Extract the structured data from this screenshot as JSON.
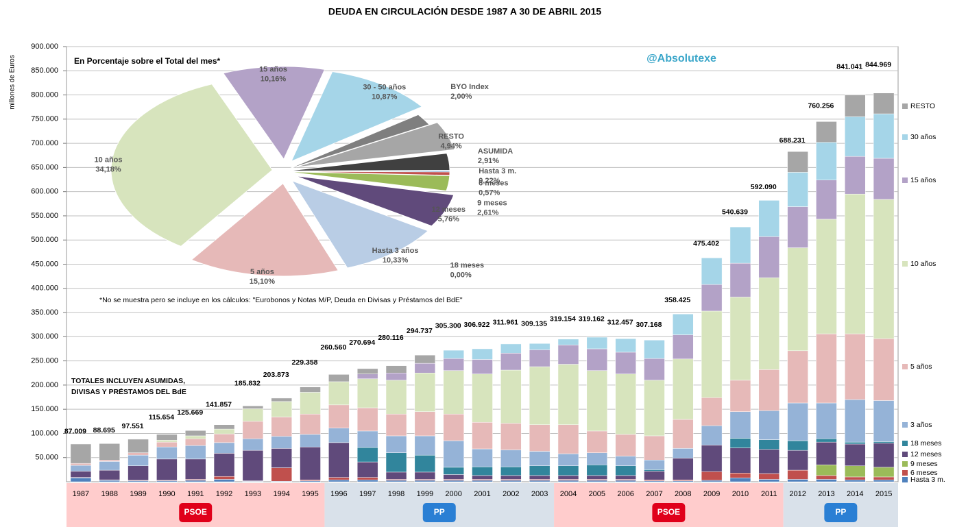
{
  "chart_data": [
    {
      "type": "bar",
      "stacked": true,
      "title": "DEUDA EN CIRCULACIÓN DESDE 1987 A 30 DE ABRIL 2015",
      "y_label": "millones de Euros",
      "watermark": "@Absolutexe",
      "annotations": [
        "TOTALES INCLUYEN ASUMIDAS,",
        "DIVISAS Y PRÉSTAMOS  DEL  BdE"
      ],
      "periods": [
        "PSOE",
        "PP",
        "PSOE",
        "PP"
      ],
      "categories": [
        "1987",
        "1988",
        "1989",
        "1990",
        "1991",
        "1992",
        "1993",
        "1994",
        "1995",
        "1996",
        "1997",
        "1998",
        "1999",
        "2000",
        "2001",
        "2002",
        "2003",
        "2004",
        "2005",
        "2006",
        "2007",
        "2008",
        "2009",
        "2010",
        "2011",
        "2012",
        "2013",
        "2014",
        "2015"
      ],
      "ylim": [
        0,
        900000
      ],
      "yticks": [
        {
          "value": 50000,
          "label": "50.000"
        },
        {
          "value": 100000,
          "label": "100.000"
        },
        {
          "value": 150000,
          "label": "150.000"
        },
        {
          "value": 200000,
          "label": "200.000"
        },
        {
          "value": 250000,
          "label": "250.000"
        },
        {
          "value": 300000,
          "label": "300.000"
        },
        {
          "value": 350000,
          "label": "350.000"
        },
        {
          "value": 400000,
          "label": "400.000"
        },
        {
          "value": 450000,
          "label": "450.000"
        },
        {
          "value": 500000,
          "label": "500.000"
        },
        {
          "value": 550000,
          "label": "550.000"
        },
        {
          "value": 600000,
          "label": "600.000"
        },
        {
          "value": 650000,
          "label": "650.000"
        },
        {
          "value": 700000,
          "label": "700.000"
        },
        {
          "value": 750000,
          "label": "750.000"
        },
        {
          "value": 800000,
          "label": "800.000"
        },
        {
          "value": 850000,
          "label": "850.000"
        },
        {
          "value": 900000,
          "label": "900.000"
        }
      ],
      "grid": true,
      "series": [
        {
          "name": "Hasta 3 m.",
          "color": "#4f81bd",
          "values": [
            8000,
            3000,
            2000,
            2000,
            3000,
            5000,
            1000,
            1000,
            2000,
            4000,
            4000,
            3000,
            3000,
            3000,
            3000,
            3000,
            3000,
            3000,
            3000,
            3000,
            2000,
            2000,
            3000,
            8000,
            5000,
            5000,
            5000,
            4000,
            4000
          ]
        },
        {
          "name": "6 meses",
          "color": "#c0504d",
          "values": [
            1000,
            1000,
            1000,
            1000,
            2000,
            6000,
            1000,
            28000,
            2000,
            5000,
            5000,
            2000,
            2000,
            2000,
            2000,
            2000,
            2000,
            2000,
            2000,
            2000,
            2000,
            2000,
            18000,
            10000,
            12000,
            19000,
            8000,
            6000,
            6000
          ]
        },
        {
          "name": "9 meses",
          "color": "#9bbb59",
          "values": [
            0,
            0,
            0,
            0,
            0,
            0,
            0,
            0,
            0,
            0,
            0,
            0,
            0,
            0,
            0,
            0,
            0,
            0,
            0,
            0,
            0,
            0,
            0,
            0,
            0,
            0,
            22000,
            23000,
            20000
          ]
        },
        {
          "name": "12 meses",
          "color": "#604a7b",
          "values": [
            13000,
            20000,
            30000,
            44000,
            42000,
            48000,
            63000,
            40000,
            68000,
            72000,
            32000,
            15000,
            15000,
            10000,
            8000,
            8000,
            8000,
            8000,
            8000,
            8000,
            18000,
            45000,
            55000,
            52000,
            50000,
            41000,
            47000,
            45000,
            50000
          ]
        },
        {
          "name": "18 meses",
          "color": "#31859c",
          "values": [
            0,
            0,
            0,
            0,
            0,
            0,
            0,
            0,
            0,
            0,
            30000,
            40000,
            35000,
            15000,
            18000,
            18000,
            20000,
            20000,
            22000,
            20000,
            3000,
            0,
            0,
            20000,
            20000,
            20000,
            7000,
            4000,
            3000
          ]
        },
        {
          "name": "3 años",
          "color": "#95b3d7",
          "values": [
            12000,
            18000,
            22000,
            25000,
            28000,
            22000,
            24000,
            25000,
            26000,
            30000,
            34000,
            35000,
            40000,
            55000,
            37000,
            35000,
            30000,
            25000,
            25000,
            20000,
            20000,
            20000,
            40000,
            55000,
            60000,
            78000,
            74000,
            88000,
            85000
          ]
        },
        {
          "name": "5 años",
          "color": "#e6b9b8",
          "values": [
            4000,
            3000,
            5000,
            10000,
            14000,
            18000,
            36000,
            40000,
            42000,
            48000,
            48000,
            45000,
            50000,
            55000,
            55000,
            55000,
            55000,
            60000,
            45000,
            45000,
            50000,
            60000,
            58000,
            65000,
            85000,
            108000,
            143000,
            136000,
            128000
          ]
        },
        {
          "name": "10 años",
          "color": "#d7e4bd",
          "values": [
            0,
            0,
            0,
            4000,
            6000,
            10000,
            26000,
            32000,
            45000,
            48000,
            60000,
            70000,
            80000,
            90000,
            100000,
            110000,
            120000,
            125000,
            125000,
            125000,
            115000,
            125000,
            179000,
            172000,
            190000,
            213000,
            237000,
            289000,
            288000
          ]
        },
        {
          "name": "15 años",
          "color": "#b3a2c7",
          "values": [
            0,
            0,
            0,
            0,
            0,
            0,
            0,
            0,
            0,
            0,
            10000,
            15000,
            20000,
            25000,
            30000,
            35000,
            35000,
            40000,
            45000,
            45000,
            45000,
            50000,
            55000,
            70000,
            85000,
            85000,
            81000,
            78000,
            85000
          ]
        },
        {
          "name": "30 años",
          "color": "#a5d5e8",
          "values": [
            0,
            0,
            0,
            0,
            0,
            0,
            0,
            0,
            0,
            0,
            0,
            0,
            0,
            17000,
            22000,
            19000,
            13000,
            12000,
            24000,
            28000,
            38000,
            43000,
            55000,
            75000,
            75000,
            71000,
            78000,
            82000,
            92000
          ]
        },
        {
          "name": "RESTO",
          "color": "#a6a6a6",
          "values": [
            40000,
            34000,
            28000,
            12000,
            11000,
            9000,
            6000,
            7000,
            11000,
            15000,
            11000,
            15000,
            17000,
            0,
            0,
            0,
            0,
            0,
            0,
            0,
            0,
            0,
            0,
            0,
            0,
            43000,
            43000,
            45000,
            43000
          ]
        }
      ],
      "totals": {
        "values": [
          87009,
          88695,
          97551,
          115654,
          125669,
          141857,
          185832,
          203873,
          229358,
          260560,
          270694,
          280116,
          294737,
          305300,
          306922,
          311961,
          309135,
          319154,
          319162,
          312457,
          307168,
          358425,
          475402,
          540639,
          592090,
          688231,
          760256,
          841041,
          844969
        ],
        "value_labels": [
          "87.009",
          "88.695",
          "97.551",
          "115.654",
          "125.669",
          "141.857",
          "185.832",
          "203.873",
          "229.358",
          "260.560",
          "270.694",
          "280.116",
          "294.737",
          "305.300",
          "306.922",
          "311.961",
          "309.135",
          "319.154",
          "319.162",
          "312.457",
          "307.168",
          "358.425",
          "475.402",
          "540.639",
          "592.090",
          "688.231",
          "760.256",
          "841.041",
          "844.969"
        ]
      }
    },
    {
      "type": "pie",
      "title": "En Porcentaje sobre el Total del mes*",
      "footnote": "*No se muestra pero se incluye en los cálculos: \"Eurobonos y Notas M/P, Deuda en Divisas y Préstamos del BdE\"",
      "categories": [
        "15 años",
        "30 - 50 años",
        "BYO Index",
        "RESTO",
        "ASUMIDA",
        "Hasta 3 m.",
        "6 meses",
        "9 meses",
        "12 meses",
        "18 meses",
        "Hasta 3 años",
        "5 años",
        "10 años"
      ],
      "values": [
        10.16,
        10.87,
        2.0,
        4.94,
        2.91,
        0.22,
        0.57,
        2.61,
        5.76,
        0.0,
        10.33,
        15.1,
        34.18
      ],
      "value_labels": [
        "10,16%",
        "10,87%",
        "2,00%",
        "4,94%",
        "2,91%",
        "0,22%",
        "0,57%",
        "2,61%",
        "5,76%",
        "0,00%",
        "10,33%",
        "15,10%",
        "34,18%"
      ],
      "colors": [
        "#b3a2c7",
        "#a5d5e8",
        "#7f7f7f",
        "#a6a6a6",
        "#404040",
        "#4f81bd",
        "#c0504d",
        "#9bbb59",
        "#604a7b",
        "#31859c",
        "#b9cde5",
        "#e6b9b8",
        "#d7e4bd"
      ]
    }
  ]
}
